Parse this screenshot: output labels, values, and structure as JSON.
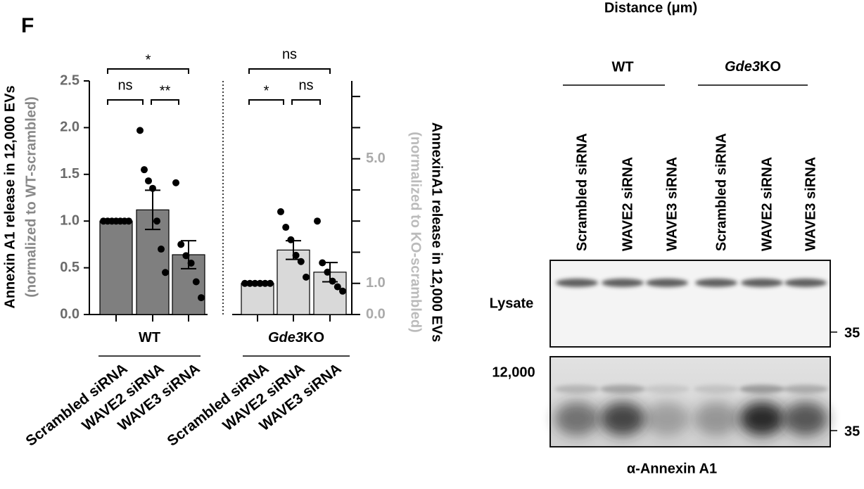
{
  "chart_data": {
    "type": "bar",
    "panel_label": "F",
    "ylabel": "Annexin A1 release in 12,000 EVs",
    "ylabel_note": "(normalized to WT-scrambled)",
    "y2label": "AnnexinA1 release in 12,000  EVs",
    "y2label_note": "(normalized to KO-scrambled)",
    "ylim": [
      0,
      2.5
    ],
    "yticks": [
      {
        "value": 0,
        "label": "0.0"
      },
      0.5,
      {
        "value": 1,
        "label": "1.0"
      },
      1.5,
      {
        "value": 2,
        "label": "2.0"
      },
      2.5
    ],
    "y2lim": [
      0,
      7.5
    ],
    "y2ticks": [
      {
        "value": 0,
        "label": "0.0"
      },
      {
        "value": 1,
        "label": "1.0"
      },
      {
        "value": 5,
        "label": "5.0"
      }
    ],
    "y2minor_ticks": [
      2,
      3,
      4,
      6,
      7
    ],
    "categories": [
      "Scrambled siRNA",
      "WAVE2 siRNA",
      "WAVE3 siRNA"
    ],
    "groups": [
      {
        "name": "WT",
        "axis": "y",
        "color": "#7f7f7f",
        "values": [
          1.0,
          1.12,
          0.64
        ],
        "errors": [
          0,
          0.21,
          0.15
        ],
        "points": [
          [
            1,
            1,
            1,
            1,
            1,
            1,
            1
          ],
          [
            1.97,
            1.55,
            1.43,
            1.35,
            1.0,
            0.7,
            0.45
          ],
          [
            1.41,
            0.75,
            0.63,
            0.55,
            0.35,
            0.18
          ]
        ],
        "significance": [
          {
            "pair": [
              0,
              2
            ],
            "label": "*"
          },
          {
            "pair": [
              0,
              1
            ],
            "label": "ns"
          },
          {
            "pair": [
              1,
              2
            ],
            "label": "**"
          }
        ]
      },
      {
        "name_italic": "Gde3",
        "name": "KO",
        "axis": "y2",
        "color": "#d9d9d9",
        "values": [
          1.0,
          2.07,
          1.36
        ],
        "errors": [
          0,
          0.3,
          0.31
        ],
        "points": [
          [
            1,
            1,
            1,
            1,
            1,
            1
          ],
          [
            3.3,
            2.8,
            2.4,
            1.9,
            1.7,
            1.2
          ],
          [
            3.0,
            1.66,
            1.36,
            1.07,
            0.89,
            0.75
          ]
        ],
        "significance": [
          {
            "pair": [
              0,
              2
            ],
            "label": "ns"
          },
          {
            "pair": [
              0,
              1
            ],
            "label": "*"
          },
          {
            "pair": [
              1,
              2
            ],
            "label": "ns"
          }
        ]
      }
    ]
  },
  "blot": {
    "title": "Distance (μm)",
    "groups": [
      {
        "name": "WT"
      },
      {
        "name_italic": "Gde3",
        "name": "KO"
      }
    ],
    "lanes": [
      "Scrambled siRNA",
      "WAVE2 siRNA",
      "WAVE3 siRNA",
      "Scrambled siRNA",
      "WAVE2 siRNA",
      "WAVE3 siRNA"
    ],
    "rows": [
      "Lysate",
      "12,000"
    ],
    "marker": "35",
    "antibody": "α-Annexin A1"
  }
}
